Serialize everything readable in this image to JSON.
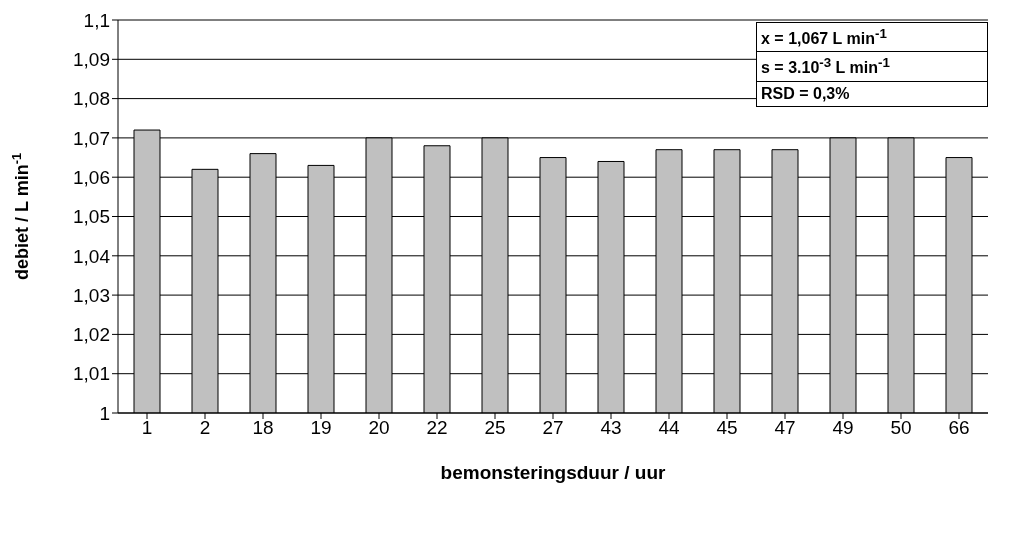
{
  "chart_data": {
    "type": "bar",
    "xlabel": "bemonsteringsduur / uur",
    "ylabel": "debiet / L min$^{-1}$",
    "categories": [
      "1",
      "2",
      "18",
      "19",
      "20",
      "22",
      "25",
      "27",
      "43",
      "44",
      "45",
      "47",
      "49",
      "50",
      "66"
    ],
    "values": [
      1.072,
      1.062,
      1.066,
      1.063,
      1.07,
      1.068,
      1.07,
      1.065,
      1.064,
      1.067,
      1.067,
      1.067,
      1.07,
      1.07,
      1.065
    ],
    "color": "#c0c0c0",
    "ylim": [
      1,
      1.1
    ],
    "yticks": [
      {
        "value": 1,
        "label": "1"
      },
      {
        "value": 1.01,
        "label": "1,01"
      },
      {
        "value": 1.02,
        "label": "1,02"
      },
      {
        "value": 1.03,
        "label": "1,03"
      },
      {
        "value": 1.04,
        "label": "1,04"
      },
      {
        "value": 1.05,
        "label": "1,05"
      },
      {
        "value": 1.06,
        "label": "1,06"
      },
      {
        "value": 1.07,
        "label": "1,07"
      },
      {
        "value": 1.08,
        "label": "1,08"
      },
      {
        "value": 1.09,
        "label": "1,09"
      },
      {
        "value": 1.1,
        "label": "1,1"
      }
    ],
    "grid": "y",
    "annotations": [
      "x = 1,067 L min$^{-1}$",
      "s = 3.10$^{-3}$ L min$^{-1}$",
      "RSD = 0,3%"
    ]
  }
}
